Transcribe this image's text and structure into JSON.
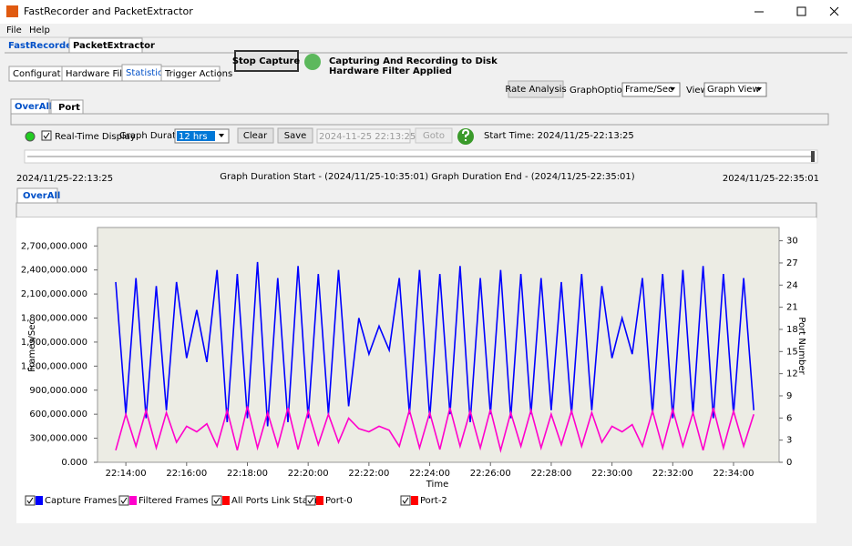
{
  "window": {
    "title": "FastRecorder and PacketExtractor"
  },
  "menu": [
    "File",
    "Help"
  ],
  "app_tabs": [
    "FastRecorder",
    "PacketExtractor"
  ],
  "sub_tabs": [
    "Configuration",
    "Hardware Filter",
    "Statistics",
    "Trigger Actions"
  ],
  "stop_button": "Stop Capture",
  "status": [
    "Capturing And Recording to Disk",
    "Hardware Filter Applied"
  ],
  "toolbar": {
    "rate_analysis": "Rate Analysis",
    "graph_options_label": "GraphOptions",
    "graph_options_value": "Frame/Sec",
    "view_label": "View",
    "view_value": "Graph View"
  },
  "view_tabs": [
    "OverAll",
    "Port"
  ],
  "controls": {
    "realtime": "Real-Time Display",
    "graph_duration_label": "Graph Duration",
    "graph_duration_value": "12 hrs",
    "clear": "Clear",
    "save": "Save",
    "datetime": "2024-11-25 22:13:25",
    "goto": "Goto",
    "start_time": "Start Time: 2024/11/25-22:13:25"
  },
  "range": {
    "left": "2024/11/25-22:13:25",
    "center": "Graph Duration Start - (2024/11/25-10:35:01) Graph Duration End - (2024/11/25-22:35:01)",
    "right": "2024/11/25-22:35:01"
  },
  "graph_tab": "OverAll",
  "chart_data": {
    "type": "line",
    "xlabel": "Time",
    "ylabel": "Frames/Sec",
    "y2label": "Port Number",
    "grid": false,
    "x": [
      "22:13:40",
      "22:14:00",
      "22:14:20",
      "22:14:40",
      "22:15:00",
      "22:15:20",
      "22:15:40",
      "22:16:00",
      "22:16:20",
      "22:16:40",
      "22:17:00",
      "22:17:20",
      "22:17:40",
      "22:18:00",
      "22:18:20",
      "22:18:40",
      "22:19:00",
      "22:19:20",
      "22:19:40",
      "22:20:00",
      "22:20:20",
      "22:20:40",
      "22:21:00",
      "22:21:20",
      "22:21:40",
      "22:22:00",
      "22:22:20",
      "22:22:40",
      "22:23:00",
      "22:23:20",
      "22:23:40",
      "22:24:00",
      "22:24:20",
      "22:24:40",
      "22:25:00",
      "22:25:20",
      "22:25:40",
      "22:26:00",
      "22:26:20",
      "22:26:40",
      "22:27:00",
      "22:27:20",
      "22:27:40",
      "22:28:00",
      "22:28:20",
      "22:28:40",
      "22:29:00",
      "22:29:20",
      "22:29:40",
      "22:30:00",
      "22:30:20",
      "22:30:40",
      "22:31:00",
      "22:31:20",
      "22:31:40",
      "22:32:00",
      "22:32:20",
      "22:32:40",
      "22:33:00",
      "22:33:20",
      "22:33:40",
      "22:34:00",
      "22:34:20",
      "22:34:40"
    ],
    "xlim": [
      "22:13:04",
      "22:35:30"
    ],
    "xticks": [
      "22:14:00",
      "22:16:00",
      "22:18:00",
      "22:20:00",
      "22:22:00",
      "22:24:00",
      "22:26:00",
      "22:28:00",
      "22:30:00",
      "22:32:00",
      "22:34:00"
    ],
    "ylim": [
      0,
      2930000
    ],
    "yticks": [
      {
        "value": 0,
        "label": "0.000"
      },
      {
        "value": 300000,
        "label": "300,000.000"
      },
      {
        "value": 600000,
        "label": "600,000.000"
      },
      {
        "value": 900000,
        "label": "900,000.000"
      },
      {
        "value": 1200000,
        "label": "1,200,000.000"
      },
      {
        "value": 1500000,
        "label": "1,500,000.000"
      },
      {
        "value": 1800000,
        "label": "1,800,000.000"
      },
      {
        "value": 2100000,
        "label": "2,100,000.000"
      },
      {
        "value": 2400000,
        "label": "2,400,000.000"
      },
      {
        "value": 2700000,
        "label": "2,700,000.000"
      }
    ],
    "y2lim": [
      0,
      31.8
    ],
    "y2ticks": [
      0,
      3,
      6,
      9,
      12,
      15,
      18,
      21,
      24,
      27,
      30
    ],
    "series": [
      {
        "name": "Capture Frames",
        "color": "#0000ff",
        "values": [
          2250000,
          600000,
          2300000,
          550000,
          2200000,
          650000,
          2250000,
          1300000,
          1900000,
          1250000,
          2400000,
          500000,
          2350000,
          550000,
          2500000,
          450000,
          2300000,
          500000,
          2450000,
          550000,
          2350000,
          600000,
          2400000,
          700000,
          1800000,
          1350000,
          1700000,
          1400000,
          2300000,
          600000,
          2400000,
          550000,
          2350000,
          600000,
          2450000,
          500000,
          2300000,
          600000,
          2400000,
          550000,
          2350000,
          600000,
          2300000,
          650000,
          2250000,
          600000,
          2350000,
          650000,
          2200000,
          1300000,
          1800000,
          1350000,
          2300000,
          600000,
          2350000,
          550000,
          2400000,
          600000,
          2450000,
          550000,
          2350000,
          600000,
          2300000,
          650000
        ]
      },
      {
        "name": "Filtered Frames",
        "color": "#ff00cc",
        "values": [
          150000,
          600000,
          200000,
          650000,
          180000,
          620000,
          250000,
          450000,
          380000,
          480000,
          200000,
          650000,
          150000,
          700000,
          180000,
          620000,
          200000,
          680000,
          160000,
          640000,
          220000,
          600000,
          250000,
          550000,
          420000,
          380000,
          450000,
          400000,
          200000,
          650000,
          180000,
          620000,
          160000,
          680000,
          200000,
          640000,
          180000,
          660000,
          150000,
          620000,
          200000,
          650000,
          180000,
          600000,
          220000,
          640000,
          200000,
          620000,
          250000,
          450000,
          380000,
          470000,
          200000,
          640000,
          180000,
          660000,
          200000,
          620000,
          150000,
          680000,
          180000,
          640000,
          200000,
          600000
        ]
      }
    ],
    "legend_extra": [
      {
        "name": "All Ports Link Status",
        "color": "#ff0000"
      },
      {
        "name": "Port-0",
        "color": "#ff0000"
      },
      {
        "name": "Port-2",
        "color": "#ff0000"
      }
    ]
  }
}
